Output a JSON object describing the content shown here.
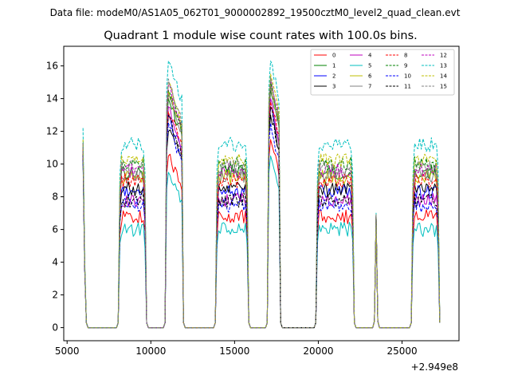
{
  "chart_data": {
    "type": "line",
    "suptitle": "Data file: modeM0/AS1A05_062T01_9000002892_19500cztM0_level2_quad_clean.evt",
    "title": "Quadrant 1 module wise count rates with 100.0s bins.",
    "xlabel": "",
    "ylabel": "",
    "x_offset_label": "+2.949e8",
    "xlim": [
      4800,
      28400
    ],
    "ylim": [
      -0.8,
      17.2
    ],
    "x_ticks": [
      5000,
      10000,
      15000,
      20000,
      25000
    ],
    "x_tick_labels": [
      "5000",
      "10000",
      "15000",
      "20000",
      "25000"
    ],
    "y_ticks": [
      0,
      2,
      4,
      6,
      8,
      10,
      12,
      14,
      16
    ],
    "y_tick_labels": [
      "0",
      "2",
      "4",
      "6",
      "8",
      "10",
      "12",
      "14",
      "16"
    ],
    "grid": false,
    "legend_position": "upper right",
    "legend_columns": 4,
    "segments": [
      {
        "x": [
          5950,
          6050,
          6150,
          6250
        ],
        "peak_sample": 0,
        "shape": "falling"
      },
      {
        "x": [
          8050,
          8150,
          8250,
          8350,
          8450,
          8550,
          8650,
          8750,
          8850,
          8950,
          9050,
          9150,
          9250,
          9350,
          9450,
          9550,
          9650,
          9750
        ],
        "shape": "plateau"
      },
      {
        "x": [
          10850,
          10950,
          11050,
          11150,
          11250,
          11350,
          11450,
          11550,
          11650,
          11750,
          11850,
          11950
        ],
        "shape": "spike"
      },
      {
        "x": [
          13850,
          13950,
          14050,
          14150,
          14250,
          14350,
          14450,
          14550,
          14650,
          14750,
          14850,
          14950,
          15050,
          15150,
          15250,
          15350,
          15450,
          15550,
          15650,
          15750,
          15850
        ],
        "shape": "plateau"
      },
      {
        "x": [
          16950,
          17050,
          17150,
          17250,
          17350,
          17450,
          17550,
          17650,
          17750
        ],
        "shape": "spike"
      },
      {
        "x": [
          19850,
          19950,
          20050,
          20150,
          20250,
          20350,
          20450,
          20550,
          20650,
          20750,
          20850,
          20950,
          21050,
          21150,
          21250,
          21350,
          21450,
          21550,
          21650,
          21750,
          21850,
          21950,
          22050,
          22150
        ],
        "shape": "plateau"
      },
      {
        "x": [
          23350,
          23450,
          23550
        ],
        "shape": "blip"
      },
      {
        "x": [
          25550,
          25650,
          25750,
          25850,
          25950,
          26050,
          26150,
          26250,
          26350,
          26450,
          26550,
          26650,
          26750,
          26850,
          26950,
          27050,
          27150,
          27250
        ],
        "shape": "plateau"
      }
    ],
    "series": [
      {
        "name": "0",
        "color": "#ff0000",
        "dash": "solid",
        "level": 6.8,
        "first": 10.5,
        "spike": 10.5,
        "spike2": 11.5,
        "blip": 6.7
      },
      {
        "name": "1",
        "color": "#008000",
        "dash": "solid",
        "level": 9.5,
        "first": 11.0,
        "spike": 14.0,
        "spike2": 14.5,
        "blip": 6.8
      },
      {
        "name": "2",
        "color": "#0000ff",
        "dash": "solid",
        "level": 8.3,
        "first": 10.8,
        "spike": 13.0,
        "spike2": 13.5,
        "blip": 6.8
      },
      {
        "name": "3",
        "color": "#000000",
        "dash": "solid",
        "level": 8.5,
        "first": 10.6,
        "spike": 12.0,
        "spike2": 13.0,
        "blip": 6.9
      },
      {
        "name": "4",
        "color": "#bf00bf",
        "dash": "solid",
        "level": 7.8,
        "first": 10.4,
        "spike": 13.5,
        "spike2": 14.0,
        "blip": 6.8
      },
      {
        "name": "5",
        "color": "#00bfbf",
        "dash": "solid",
        "level": 6.0,
        "first": 10.2,
        "spike": 9.5,
        "spike2": 10.5,
        "blip": 6.6
      },
      {
        "name": "6",
        "color": "#bfbf00",
        "dash": "solid",
        "level": 9.2,
        "first": 11.0,
        "spike": 14.5,
        "spike2": 15.0,
        "blip": 6.9
      },
      {
        "name": "7",
        "color": "#808080",
        "dash": "solid",
        "level": 9.3,
        "first": 11.1,
        "spike": 14.2,
        "spike2": 14.8,
        "blip": 6.8
      },
      {
        "name": "8",
        "color": "#ff0000",
        "dash": "dashed",
        "level": 9.0,
        "first": 10.9,
        "spike": 13.2,
        "spike2": 13.8,
        "blip": 6.8
      },
      {
        "name": "9",
        "color": "#008000",
        "dash": "dashed",
        "level": 10.0,
        "first": 11.3,
        "spike": 14.5,
        "spike2": 15.0,
        "blip": 6.9
      },
      {
        "name": "10",
        "color": "#0000ff",
        "dash": "dashed",
        "level": 7.5,
        "first": 10.5,
        "spike": 12.5,
        "spike2": 12.5,
        "blip": 6.7
      },
      {
        "name": "11",
        "color": "#000000",
        "dash": "dashed",
        "level": 7.8,
        "first": 10.6,
        "spike": 13.0,
        "spike2": 13.5,
        "blip": 6.8
      },
      {
        "name": "12",
        "color": "#bf00bf",
        "dash": "dashed",
        "level": 9.6,
        "first": 11.2,
        "spike": 14.8,
        "spike2": 15.2,
        "blip": 6.9
      },
      {
        "name": "13",
        "color": "#00bfbf",
        "dash": "dashed",
        "level": 11.2,
        "first": 12.2,
        "spike": 16.3,
        "spike2": 16.3,
        "blip": 7.0
      },
      {
        "name": "14",
        "color": "#bfbf00",
        "dash": "dashed",
        "level": 10.2,
        "first": 11.5,
        "spike": 15.0,
        "spike2": 15.5,
        "blip": 6.9
      },
      {
        "name": "15",
        "color": "#808080",
        "dash": "dashed",
        "level": 9.8,
        "first": 11.3,
        "spike": 15.2,
        "spike2": 15.3,
        "blip": 6.9
      }
    ]
  }
}
